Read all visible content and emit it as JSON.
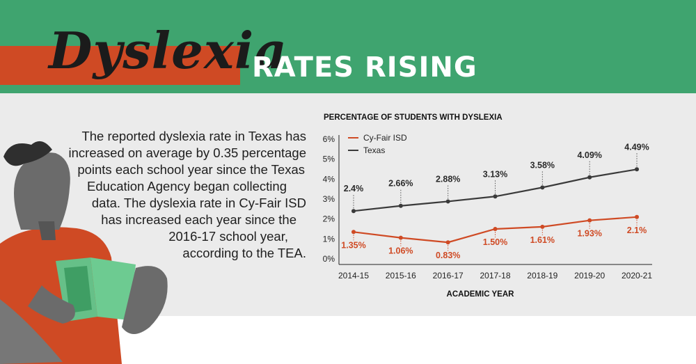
{
  "header": {
    "title_script": "Dyslexia",
    "title_main": "RATES RISING"
  },
  "description_lines": [
    "The reported dyslexia rate in Texas has",
    "increased on average by 0.35 percentage",
    "points each school year since the Texas",
    "Education Agency began collecting",
    "data. The dyslexia rate in Cy-Fair ISD",
    "has increased each year since the",
    "2016-17 school year,",
    "according to the TEA."
  ],
  "colors": {
    "header_green": "#3fa46f",
    "band_orange": "#cf4a24",
    "panel_gray": "#ebebeb",
    "texas_line": "#3a3a3a",
    "cyfair_line": "#cf4a24"
  },
  "chart_data": {
    "type": "line",
    "title": "PERCENTAGE OF STUDENTS WITH DYSLEXIA",
    "xlabel": "ACADEMIC YEAR",
    "ylabel": "",
    "categories": [
      "2014-15",
      "2015-16",
      "2016-17",
      "2017-18",
      "2018-19",
      "2019-20",
      "2020-21"
    ],
    "yticks": [
      "0%",
      "1%",
      "2%",
      "3%",
      "4%",
      "5%",
      "6%"
    ],
    "ylim": [
      0,
      6
    ],
    "legend_position": "top-left",
    "series": [
      {
        "name": "Cy-Fair ISD",
        "color": "#cf4a24",
        "values": [
          1.35,
          1.06,
          0.83,
          1.5,
          1.61,
          1.93,
          2.1
        ],
        "labels": [
          "1.35%",
          "1.06%",
          "0.83%",
          "1.50%",
          "1.61%",
          "1.93%",
          "2.1%"
        ]
      },
      {
        "name": "Texas",
        "color": "#3a3a3a",
        "values": [
          2.4,
          2.66,
          2.88,
          3.13,
          3.58,
          4.09,
          4.49
        ],
        "labels": [
          "2.4%",
          "2.66%",
          "2.88%",
          "3.13%",
          "3.58%",
          "4.09%",
          "4.49%"
        ]
      }
    ]
  }
}
